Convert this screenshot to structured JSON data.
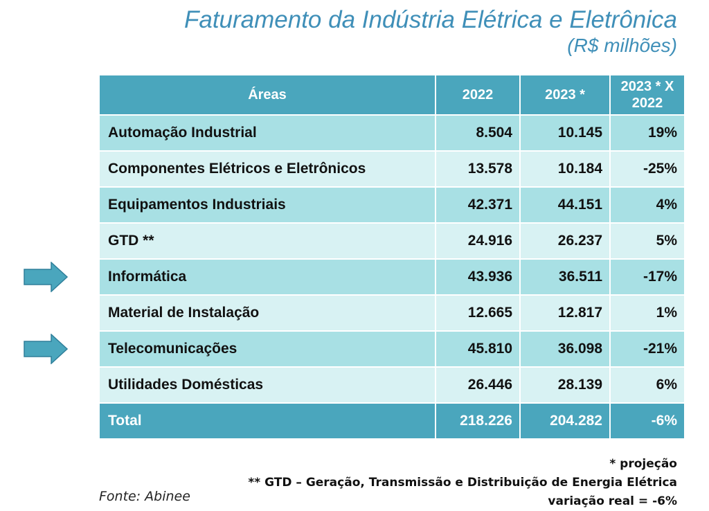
{
  "title": "Faturamento da Indústria Elétrica e Eletrônica",
  "subtitle": "(R$ milhões)",
  "table": {
    "headers": [
      "Áreas",
      "2022",
      "2023 *",
      "2023 * X 2022"
    ],
    "rows": [
      {
        "area": "Automação Industrial",
        "y2022": "8.504",
        "y2023": "10.145",
        "change": "19%",
        "highlighted": false
      },
      {
        "area": "Componentes Elétricos e Eletrônicos",
        "y2022": "13.578",
        "y2023": "10.184",
        "change": "-25%",
        "highlighted": false
      },
      {
        "area": "Equipamentos Industriais",
        "y2022": "42.371",
        "y2023": "44.151",
        "change": "4%",
        "highlighted": false
      },
      {
        "area": "GTD **",
        "y2022": "24.916",
        "y2023": "26.237",
        "change": "5%",
        "highlighted": false
      },
      {
        "area": "Informática",
        "y2022": "43.936",
        "y2023": "36.511",
        "change": "-17%",
        "highlighted": true
      },
      {
        "area": "Material de Instalação",
        "y2022": "12.665",
        "y2023": "12.817",
        "change": "1%",
        "highlighted": false
      },
      {
        "area": "Telecomunicações",
        "y2022": "45.810",
        "y2023": "36.098",
        "change": "-21%",
        "highlighted": true
      },
      {
        "area": "Utilidades Domésticas",
        "y2022": "26.446",
        "y2023": "28.139",
        "change": "6%",
        "highlighted": false
      }
    ],
    "total": {
      "area": "Total",
      "y2022": "218.226",
      "y2023": "204.282",
      "change": "-6%"
    }
  },
  "notes": [
    "* projeção",
    "** GTD – Geração, Transmissão e Distribuição de Energia Elétrica",
    "variação real = -6%"
  ],
  "source": "Fonte: Abinee",
  "colors": {
    "title": "#3f8fb8",
    "header": "#4aa6bd",
    "row_odd": "#a8e0e4",
    "row_even": "#d8f2f3",
    "arrow": "#4aa6bd"
  },
  "icons": {
    "highlight_marker": "arrow-right-icon"
  }
}
